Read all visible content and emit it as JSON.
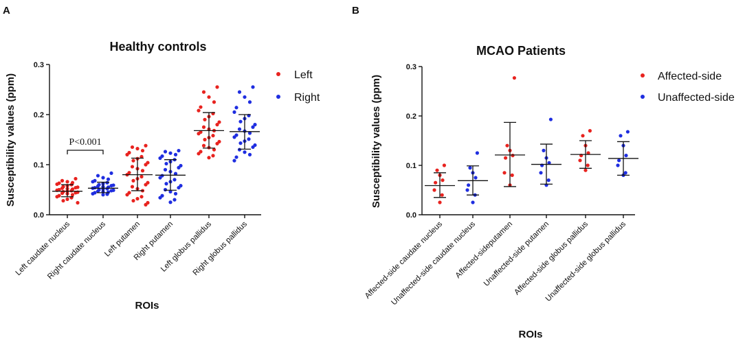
{
  "chart_data": [
    {
      "panel_label": "A",
      "type": "scatter",
      "title": "Healthy controls",
      "xlabel": "ROIs",
      "ylabel": "Susceptibility values (ppm)",
      "ylim": [
        0,
        0.3
      ],
      "yticks": [
        "0.0",
        "0.1",
        "0.2",
        "0.3"
      ],
      "legend_position": "top-right",
      "legend": [
        {
          "name": "Left",
          "color": "#e8231f"
        },
        {
          "name": "Right",
          "color": "#1f2ee0"
        }
      ],
      "annotation": {
        "text": "P<0.001",
        "between": [
          0,
          1
        ]
      },
      "categories": [
        {
          "label": "Left caudate nucleus",
          "series": "Left",
          "mean": 0.047,
          "sd_low": 0.036,
          "sd_high": 0.06,
          "points": [
            0.072,
            0.068,
            0.066,
            0.064,
            0.063,
            0.061,
            0.06,
            0.058,
            0.056,
            0.055,
            0.054,
            0.053,
            0.052,
            0.051,
            0.05,
            0.049,
            0.048,
            0.047,
            0.046,
            0.045,
            0.044,
            0.043,
            0.042,
            0.04,
            0.038,
            0.036,
            0.034,
            0.031,
            0.028,
            0.024
          ]
        },
        {
          "label": "Right caudate nucleus",
          "series": "Right",
          "mean": 0.053,
          "sd_low": 0.044,
          "sd_high": 0.065,
          "points": [
            0.083,
            0.078,
            0.074,
            0.071,
            0.068,
            0.066,
            0.064,
            0.062,
            0.06,
            0.059,
            0.058,
            0.057,
            0.056,
            0.055,
            0.054,
            0.053,
            0.052,
            0.051,
            0.05,
            0.049,
            0.048,
            0.047,
            0.046,
            0.045,
            0.044,
            0.042,
            0.041,
            0.04
          ]
        },
        {
          "label": "Left putamen",
          "series": "Left",
          "mean": 0.08,
          "sd_low": 0.048,
          "sd_high": 0.113,
          "points": [
            0.138,
            0.135,
            0.132,
            0.128,
            0.124,
            0.12,
            0.116,
            0.112,
            0.108,
            0.104,
            0.1,
            0.096,
            0.092,
            0.088,
            0.084,
            0.08,
            0.076,
            0.072,
            0.068,
            0.064,
            0.06,
            0.056,
            0.052,
            0.048,
            0.044,
            0.04,
            0.036,
            0.032,
            0.028,
            0.024,
            0.02
          ]
        },
        {
          "label": "Right putamen",
          "series": "Right",
          "mean": 0.079,
          "sd_low": 0.049,
          "sd_high": 0.11,
          "points": [
            0.128,
            0.126,
            0.123,
            0.12,
            0.117,
            0.113,
            0.11,
            0.106,
            0.102,
            0.098,
            0.094,
            0.09,
            0.086,
            0.082,
            0.078,
            0.074,
            0.07,
            0.066,
            0.062,
            0.058,
            0.054,
            0.05,
            0.046,
            0.042,
            0.038,
            0.034,
            0.03,
            0.025
          ]
        },
        {
          "label": "Left globus pallidus",
          "series": "Left",
          "mean": 0.168,
          "sd_low": 0.133,
          "sd_high": 0.204,
          "points": [
            0.255,
            0.245,
            0.235,
            0.225,
            0.215,
            0.208,
            0.202,
            0.196,
            0.19,
            0.185,
            0.18,
            0.175,
            0.171,
            0.168,
            0.165,
            0.162,
            0.158,
            0.154,
            0.15,
            0.146,
            0.142,
            0.138,
            0.134,
            0.13,
            0.126,
            0.122,
            0.118,
            0.114
          ]
        },
        {
          "label": "Right globus pallidus",
          "series": "Right",
          "mean": 0.166,
          "sd_low": 0.131,
          "sd_high": 0.2,
          "points": [
            0.255,
            0.245,
            0.235,
            0.225,
            0.214,
            0.205,
            0.198,
            0.192,
            0.186,
            0.18,
            0.175,
            0.171,
            0.167,
            0.163,
            0.159,
            0.155,
            0.151,
            0.147,
            0.143,
            0.139,
            0.135,
            0.13,
            0.125,
            0.12,
            0.115,
            0.108
          ]
        }
      ]
    },
    {
      "panel_label": "B",
      "type": "scatter",
      "title": "MCAO Patients",
      "xlabel": "ROIs",
      "ylabel": "Susceptibility values (ppm)",
      "ylim": [
        0,
        0.3
      ],
      "yticks": [
        "0.0",
        "0.1",
        "0.2",
        "0.3"
      ],
      "legend_position": "top-right",
      "legend": [
        {
          "name": "Affected-side",
          "color": "#e8231f"
        },
        {
          "name": "Unaffected-side",
          "color": "#1f2ee0"
        }
      ],
      "categories": [
        {
          "label": "Affected-side caudate nucleus",
          "series": "Affected-side",
          "mean": 0.059,
          "sd_low": 0.035,
          "sd_high": 0.085,
          "points": [
            0.1,
            0.09,
            0.08,
            0.07,
            0.065,
            0.05,
            0.04,
            0.025
          ]
        },
        {
          "label": "Unaffected-side caudate nucleus",
          "series": "Unaffected-side",
          "mean": 0.069,
          "sd_low": 0.04,
          "sd_high": 0.099,
          "points": [
            0.125,
            0.095,
            0.085,
            0.075,
            0.06,
            0.05,
            0.04,
            0.025
          ]
        },
        {
          "label": "Affected-sideputamen",
          "series": "Affected-side",
          "mean": 0.121,
          "sd_low": 0.057,
          "sd_high": 0.187,
          "points": [
            0.277,
            0.14,
            0.13,
            0.12,
            0.115,
            0.085,
            0.08,
            0.06
          ]
        },
        {
          "label": "Unaffected-side putamen",
          "series": "Unaffected-side",
          "mean": 0.102,
          "sd_low": 0.062,
          "sd_high": 0.143,
          "points": [
            0.193,
            0.13,
            0.115,
            0.105,
            0.1,
            0.085,
            0.07,
            0.06
          ]
        },
        {
          "label": "Affected-side globus pallidus",
          "series": "Affected-side",
          "mean": 0.122,
          "sd_low": 0.094,
          "sd_high": 0.15,
          "points": [
            0.17,
            0.16,
            0.14,
            0.125,
            0.12,
            0.11,
            0.1,
            0.09
          ]
        },
        {
          "label": "Unaffected-side globus pallidus",
          "series": "Unaffected-side",
          "mean": 0.114,
          "sd_low": 0.08,
          "sd_high": 0.148,
          "points": [
            0.168,
            0.16,
            0.14,
            0.12,
            0.11,
            0.1,
            0.085,
            0.08
          ]
        }
      ]
    }
  ]
}
